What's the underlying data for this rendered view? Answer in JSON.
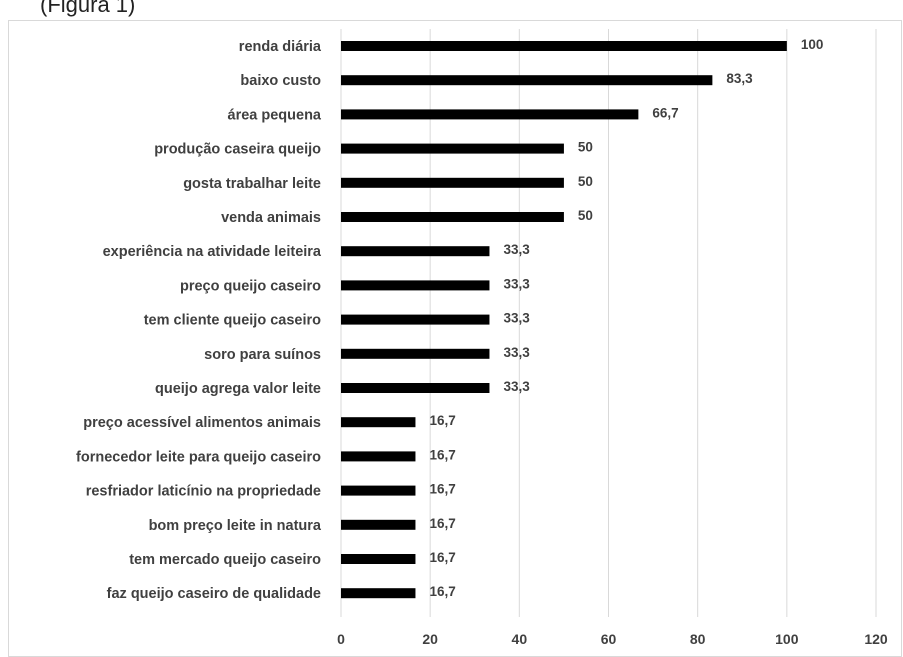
{
  "header": {
    "text": "(Figura 1)"
  },
  "chart_data": {
    "type": "bar",
    "orientation": "horizontal",
    "title": "",
    "xlabel": "",
    "ylabel": "",
    "xlim": [
      0,
      120
    ],
    "x_ticks": [
      "0",
      "20",
      "40",
      "60",
      "80",
      "100",
      "120"
    ],
    "grid": "vertical",
    "legend": "none",
    "bar_color": "#000000",
    "categories": [
      "renda diária",
      "baixo custo",
      "área pequena",
      "produção caseira queijo",
      "gosta trabalhar leite",
      "venda animais",
      "experiência na atividade leiteira",
      "preço queijo caseiro",
      "tem cliente queijo caseiro",
      "soro para suínos",
      "queijo agrega valor leite",
      "preço acessível alimentos animais",
      "fornecedor leite para queijo caseiro",
      "resfriador laticínio na propriedade",
      "bom preço leite in natura",
      "tem mercado queijo caseiro",
      "faz queijo caseiro de qualidade"
    ],
    "values": [
      100,
      83.3,
      66.7,
      50,
      50,
      50,
      33.3,
      33.3,
      33.3,
      33.3,
      33.3,
      16.7,
      16.7,
      16.7,
      16.7,
      16.7,
      16.7
    ],
    "data_labels": [
      "100",
      "83,3",
      "66,7",
      "50",
      "50",
      "50",
      "33,3",
      "33,3",
      "33,3",
      "33,3",
      "33,3",
      "16,7",
      "16,7",
      "16,7",
      "16,7",
      "16,7",
      "16,7"
    ]
  }
}
